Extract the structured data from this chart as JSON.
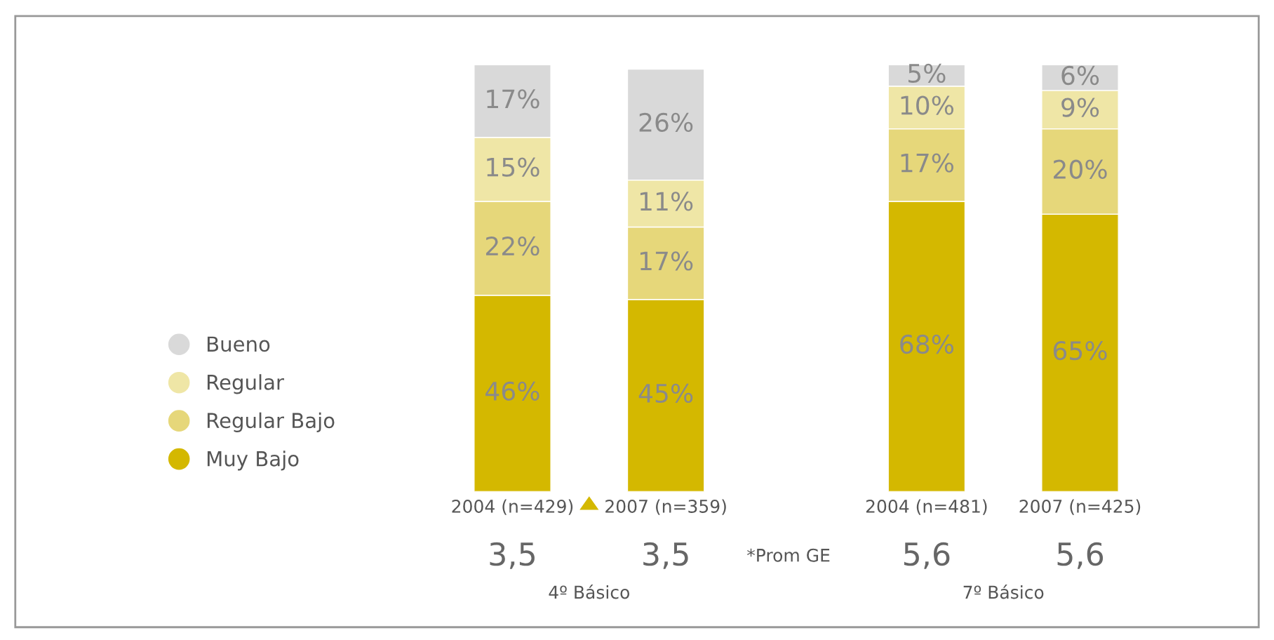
{
  "chart_data": {
    "type": "bar",
    "stacked": true,
    "legend": "left",
    "categories": [
      "2004 (n=429)",
      "2007 (n=359)",
      "2004 (n=481)",
      "2007 (n=425)"
    ],
    "series": [
      {
        "name": "Muy Bajo",
        "color": "#d4b800",
        "values": [
          46,
          45,
          68,
          65
        ],
        "value_labels": [
          "46%",
          "45%",
          "68%",
          "65%"
        ]
      },
      {
        "name": "Regular Bajo",
        "color": "#e6d77a",
        "values": [
          22,
          17,
          17,
          20
        ],
        "value_labels": [
          "22%",
          "17%",
          "17%",
          "20%"
        ]
      },
      {
        "name": "Regular",
        "color": "#efe6a6",
        "values": [
          15,
          11,
          10,
          9
        ],
        "value_labels": [
          "15%",
          "11%",
          "10%",
          "9%"
        ]
      },
      {
        "name": "Bueno",
        "color": "#d9d9d9",
        "values": [
          17,
          26,
          5,
          6
        ],
        "value_labels": [
          "17%",
          "26%",
          "5%",
          "6%"
        ]
      }
    ],
    "annotations": [
      "3,5",
      "3,5",
      "5,6",
      "5,6",
      "*Prom GE",
      "4º Básico",
      "7º Básico"
    ]
  }
}
